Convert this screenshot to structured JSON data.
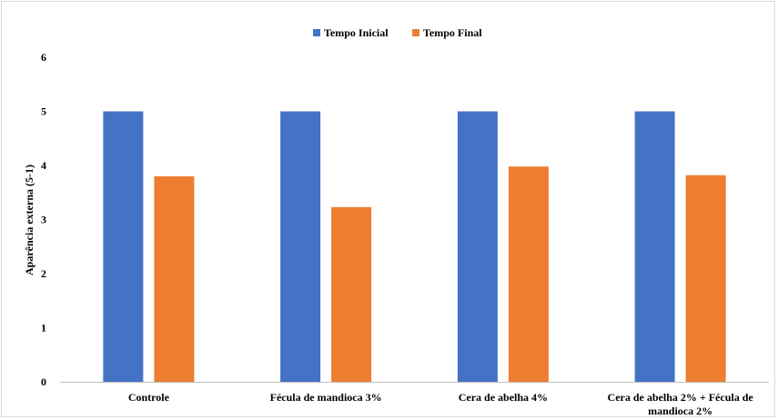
{
  "chart_data": {
    "type": "bar",
    "title": "",
    "xlabel": "",
    "ylabel": "Aparência externa (5-1)",
    "ylim": [
      0,
      6
    ],
    "yticks": [
      0,
      1,
      2,
      3,
      4,
      5,
      6
    ],
    "grid": false,
    "legend_position": "top",
    "categories": [
      [
        "Controle"
      ],
      [
        "Fécula de mandioca 3%"
      ],
      [
        "Cera de abelha 4%"
      ],
      [
        "Cera de abelha 2% + Fécula de",
        "mandioca 2%"
      ]
    ],
    "series": [
      {
        "name": "Tempo Inicial",
        "color": "#4472c4",
        "values": [
          5,
          5,
          5,
          5
        ]
      },
      {
        "name": "Tempo Final",
        "color": "#ed7d31",
        "values": [
          3.8,
          3.23,
          3.98,
          3.82
        ]
      }
    ]
  }
}
